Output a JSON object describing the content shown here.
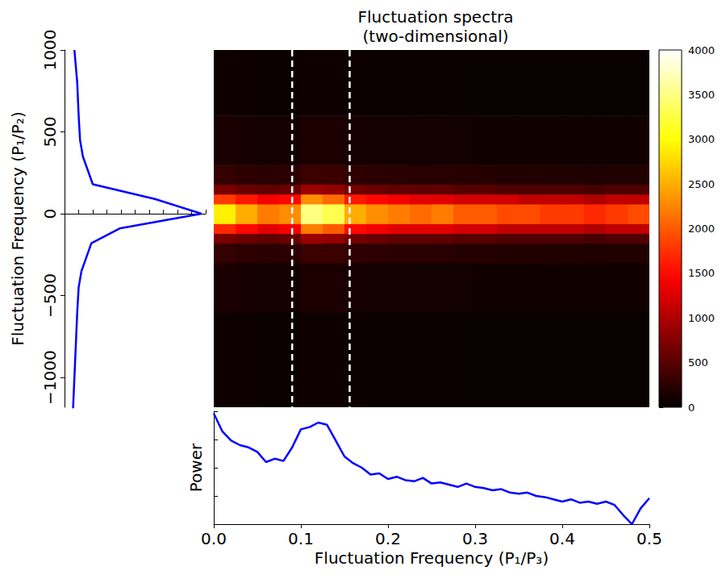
{
  "chart_data": [
    {
      "type": "heatmap",
      "title": "Fluctuation spectra\n(two-dimensional)",
      "x_edges": [
        0,
        0.025,
        0.05,
        0.075,
        0.1,
        0.125,
        0.15,
        0.175,
        0.2,
        0.225,
        0.25,
        0.275,
        0.3,
        0.325,
        0.35,
        0.375,
        0.4,
        0.425,
        0.45,
        0.475,
        0.5
      ],
      "y_edges": [
        -1182,
        -600,
        -300,
        -180,
        -120,
        -60,
        60,
        120,
        180,
        300,
        600,
        1000
      ],
      "values": [
        [
          80,
          70,
          60,
          60,
          80,
          80,
          70,
          60,
          60,
          60,
          60,
          50,
          50,
          50,
          50,
          50,
          50,
          50,
          50,
          50
        ],
        [
          150,
          130,
          120,
          120,
          160,
          160,
          130,
          120,
          120,
          110,
          110,
          110,
          100,
          100,
          100,
          100,
          90,
          90,
          90,
          90
        ],
        [
          300,
          260,
          240,
          250,
          350,
          330,
          270,
          250,
          240,
          230,
          230,
          220,
          210,
          200,
          200,
          190,
          190,
          180,
          190,
          190
        ],
        [
          700,
          600,
          550,
          600,
          900,
          850,
          650,
          600,
          550,
          550,
          550,
          500,
          500,
          450,
          450,
          450,
          450,
          400,
          450,
          450
        ],
        [
          1700,
          1500,
          1300,
          1400,
          2200,
          2000,
          1500,
          1400,
          1300,
          1300,
          1300,
          1200,
          1200,
          1100,
          1100,
          1100,
          1100,
          1000,
          1100,
          1100
        ],
        [
          2900,
          2500,
          2200,
          2300,
          3500,
          3300,
          2500,
          2300,
          2200,
          2100,
          2200,
          2000,
          2000,
          1900,
          1900,
          1800,
          1800,
          1700,
          1800,
          1900
        ],
        [
          1800,
          1600,
          1400,
          1500,
          2300,
          2100,
          1600,
          1500,
          1400,
          1300,
          1300,
          1200,
          1200,
          1200,
          1100,
          1100,
          1100,
          1000,
          1100,
          1100
        ],
        [
          700,
          600,
          550,
          600,
          900,
          850,
          650,
          600,
          550,
          550,
          550,
          500,
          500,
          450,
          450,
          450,
          450,
          400,
          450,
          450
        ],
        [
          300,
          260,
          240,
          250,
          350,
          330,
          270,
          250,
          240,
          230,
          230,
          220,
          210,
          200,
          200,
          190,
          190,
          180,
          190,
          190
        ],
        [
          150,
          130,
          120,
          120,
          160,
          160,
          130,
          120,
          120,
          110,
          110,
          110,
          100,
          100,
          100,
          100,
          90,
          90,
          90,
          90
        ],
        [
          80,
          70,
          60,
          60,
          80,
          80,
          70,
          60,
          60,
          60,
          60,
          50,
          50,
          50,
          50,
          50,
          50,
          50,
          50,
          50
        ]
      ],
      "xlim": [
        0,
        0.5
      ],
      "ylim": [
        -1182,
        1000
      ],
      "tick_labels": false,
      "colorbar": {
        "range": [
          0,
          4000
        ],
        "ticks": [
          0,
          500,
          1000,
          1500,
          2000,
          2500,
          3000,
          3500,
          4000
        ]
      },
      "vlines": [
        0.09,
        0.156
      ],
      "line_style": "dashed"
    },
    {
      "type": "line",
      "ylabel": "Fluctuation Frequency (P₁/P₂)",
      "x": [
        0.06,
        0.07,
        0.08,
        0.09,
        0.1,
        0.12,
        0.19,
        0.39,
        0.97,
        0.64,
        0.2,
        0.13,
        0.11,
        0.1,
        0.09,
        0.07
      ],
      "y": [
        -1200,
        -1000,
        -800,
        -600,
        -450,
        -350,
        -180,
        -90,
        0,
        90,
        180,
        350,
        450,
        600,
        800,
        1000
      ],
      "xlim": [
        0,
        1
      ],
      "xticks": [
        0,
        0.1,
        0.2,
        0.3,
        0.4,
        0.5,
        0.6,
        0.7,
        0.8,
        0.9,
        1
      ],
      "ylim": [
        -1182,
        1000
      ],
      "yticks": [
        {
          "value": -1000,
          "label": "−1000"
        },
        {
          "value": -500,
          "label": "−500"
        },
        0,
        500,
        1000
      ],
      "tick_labels": "y",
      "color": "#0000ff"
    },
    {
      "type": "line",
      "xlabel": "Fluctuation Frequency (P₁/P₃)",
      "ylabel": "Power",
      "x": [
        0,
        0.01,
        0.02,
        0.03,
        0.04,
        0.05,
        0.06,
        0.07,
        0.08,
        0.09,
        0.1,
        0.11,
        0.12,
        0.13,
        0.14,
        0.15,
        0.16,
        0.17,
        0.18,
        0.19,
        0.2,
        0.21,
        0.22,
        0.23,
        0.24,
        0.25,
        0.26,
        0.27,
        0.28,
        0.29,
        0.3,
        0.31,
        0.32,
        0.33,
        0.34,
        0.35,
        0.36,
        0.37,
        0.38,
        0.39,
        0.4,
        0.41,
        0.42,
        0.43,
        0.44,
        0.45,
        0.46,
        0.47,
        0.48,
        0.49,
        0.5
      ],
      "values": [
        0.98,
        0.82,
        0.74,
        0.7,
        0.68,
        0.64,
        0.55,
        0.58,
        0.56,
        0.68,
        0.84,
        0.86,
        0.9,
        0.88,
        0.74,
        0.6,
        0.54,
        0.5,
        0.44,
        0.45,
        0.4,
        0.42,
        0.39,
        0.38,
        0.41,
        0.36,
        0.37,
        0.35,
        0.33,
        0.36,
        0.33,
        0.32,
        0.3,
        0.31,
        0.28,
        0.27,
        0.28,
        0.25,
        0.24,
        0.22,
        0.2,
        0.22,
        0.19,
        0.2,
        0.18,
        0.2,
        0.17,
        0.08,
        0,
        0.14,
        0.23
      ],
      "xlim": [
        0,
        0.5
      ],
      "xticks": [
        {
          "value": 0,
          "label": "0.0"
        },
        0.1,
        0.2,
        0.3,
        0.4,
        0.5
      ],
      "ylim": [
        0,
        1
      ],
      "yticks": [
        0,
        0.25,
        0.5,
        0.75,
        1
      ],
      "tick_labels": "x",
      "color": "#0000ff"
    }
  ]
}
